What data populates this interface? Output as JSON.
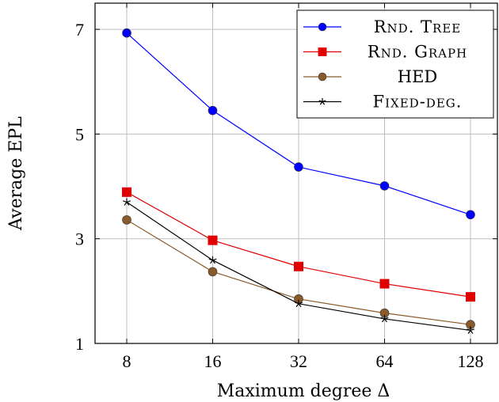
{
  "chart_data": {
    "type": "line",
    "x_scale": "log2",
    "categories": [
      "8",
      "16",
      "32",
      "64",
      "128"
    ],
    "x": [
      8,
      16,
      32,
      64,
      128
    ],
    "xlabel": "Maximum degree Δ",
    "ylabel": "Average EPL",
    "ylim": [
      1,
      7.5
    ],
    "yticks": [
      1,
      3,
      5,
      7
    ],
    "grid": true,
    "legend_position": "top-right",
    "series": [
      {
        "name": "Rnd. Tree",
        "color": "#0000ff",
        "marker": "circle",
        "values": [
          6.93,
          5.45,
          4.37,
          4.01,
          3.46
        ]
      },
      {
        "name": "Rnd. Graph",
        "color": "#e00000",
        "marker": "square",
        "values": [
          3.89,
          2.97,
          2.47,
          2.14,
          1.89
        ]
      },
      {
        "name": "HED",
        "color": "#8b5a2b",
        "marker": "circle",
        "values": [
          3.36,
          2.37,
          1.85,
          1.58,
          1.36
        ]
      },
      {
        "name": "Fixed-deg.",
        "color": "#000000",
        "marker": "star",
        "values": [
          3.7,
          2.59,
          1.76,
          1.47,
          1.25
        ]
      }
    ]
  }
}
